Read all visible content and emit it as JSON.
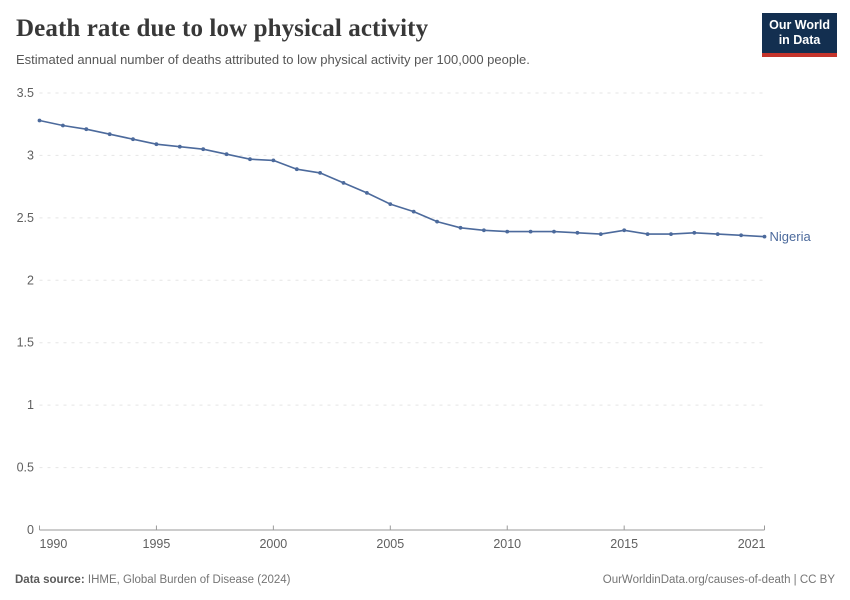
{
  "header": {
    "title": "Death rate due to low physical activity",
    "subtitle": "Estimated annual number of deaths attributed to low physical activity per 100,000 people."
  },
  "logo": {
    "line1": "Our World",
    "line2": "in Data",
    "bg_color": "#132F50",
    "accent_color": "#C5342B"
  },
  "chart_data": {
    "type": "line",
    "title": "Death rate due to low physical activity",
    "x": [
      1990,
      1991,
      1992,
      1993,
      1994,
      1995,
      1996,
      1997,
      1998,
      1999,
      2000,
      2001,
      2002,
      2003,
      2004,
      2005,
      2006,
      2007,
      2008,
      2009,
      2010,
      2011,
      2012,
      2013,
      2014,
      2015,
      2016,
      2017,
      2018,
      2019,
      2020,
      2021
    ],
    "series": [
      {
        "name": "Nigeria",
        "color": "#4C6A9C",
        "values": [
          3.28,
          3.24,
          3.21,
          3.17,
          3.13,
          3.09,
          3.07,
          3.05,
          3.01,
          2.97,
          2.96,
          2.89,
          2.86,
          2.78,
          2.7,
          2.61,
          2.55,
          2.47,
          2.42,
          2.4,
          2.39,
          2.39,
          2.39,
          2.38,
          2.37,
          2.4,
          2.37,
          2.37,
          2.38,
          2.37,
          2.36,
          2.35
        ]
      }
    ],
    "xlabel": "",
    "ylabel": "",
    "xlim": [
      1990,
      2021
    ],
    "ylim": [
      0,
      3.5
    ],
    "xticks": [
      1990,
      1995,
      2000,
      2005,
      2010,
      2015,
      2021
    ],
    "xtick_labels": [
      "1990",
      "1995",
      "2000",
      "2005",
      "2010",
      "2015",
      "2021"
    ],
    "yticks": [
      0,
      0.5,
      1,
      1.5,
      2,
      2.5,
      3,
      3.5
    ],
    "ytick_labels": [
      "0",
      "0.5",
      "1",
      "1.5",
      "2",
      "2.5",
      "3",
      "3.5"
    ],
    "grid": "horizontal-dashed",
    "legend_position": "end-of-line-label"
  },
  "colors": {
    "line": "#4C6A9C",
    "grid": "#E5E5E5",
    "axis": "#9A9A9A",
    "tick_text": "#606060"
  },
  "footer": {
    "source_label": "Data source:",
    "source_value": "IHME, Global Burden of Disease (2024)",
    "link": "OurWorldinData.org/causes-of-death | CC BY"
  }
}
